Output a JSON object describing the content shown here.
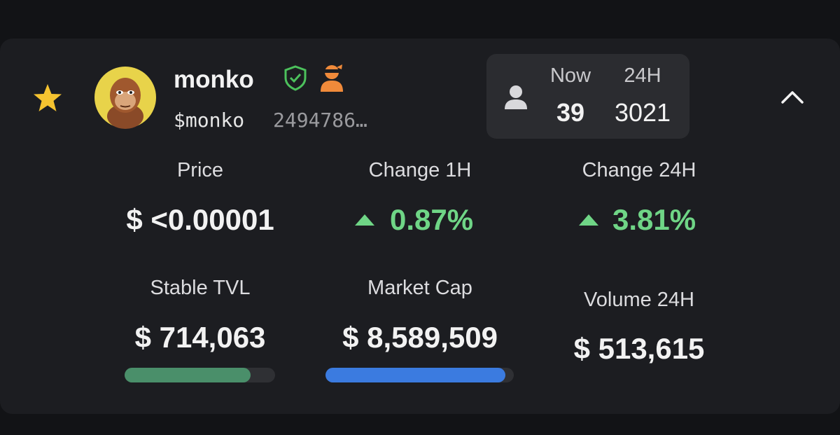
{
  "token": {
    "name": "monko",
    "symbol": "$monko",
    "address": "2494786…"
  },
  "holders": {
    "now_label": "Now",
    "day_label": "24H",
    "now": "39",
    "day": "3021"
  },
  "stats": [
    {
      "label": "Price",
      "value": "$ <0.00001"
    },
    {
      "label": "Change 1H",
      "value": "0.87%"
    },
    {
      "label": "Change 24H",
      "value": "3.81%"
    },
    {
      "label": "Stable TVL",
      "value": "$ 714,063"
    },
    {
      "label": "Market Cap",
      "value": "$ 8,589,509"
    },
    {
      "label": "Volume 24H",
      "value": "$ 513,615"
    }
  ]
}
